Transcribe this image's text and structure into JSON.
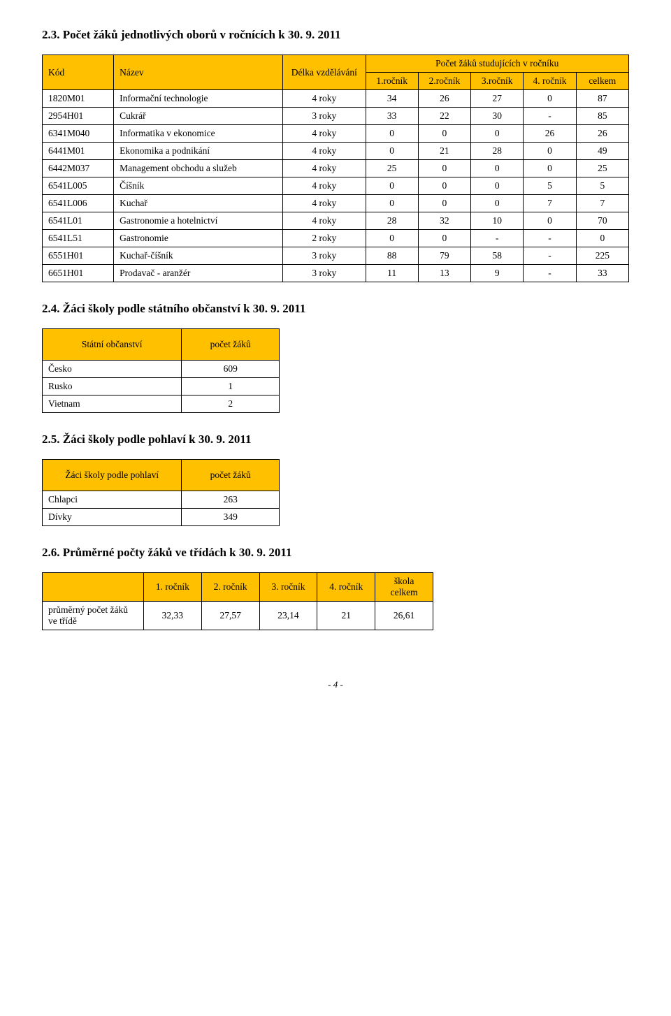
{
  "colors": {
    "accent": "#ffc000",
    "border": "#000000",
    "text": "#000000",
    "bg": "#ffffff"
  },
  "section23": {
    "title": "2.3. Počet žáků jednotlivých oborů v ročnících k 30. 9. 2011",
    "head": {
      "kod": "Kód",
      "nazev": "Název",
      "delka": "Délka vzdělávání",
      "group": "Počet žáků studujících v ročníku",
      "r1": "1.ročník",
      "r2": "2.ročník",
      "r3": "3.ročník",
      "r4": "4. ročník",
      "celkem": "celkem"
    },
    "rows": [
      {
        "kod": "1820M01",
        "nazev": "Informační technologie",
        "delka": "4 roky",
        "r1": "34",
        "r2": "26",
        "r3": "27",
        "r4": "0",
        "celkem": "87"
      },
      {
        "kod": "2954H01",
        "nazev": "Cukrář",
        "delka": "3 roky",
        "r1": "33",
        "r2": "22",
        "r3": "30",
        "r4": "-",
        "celkem": "85"
      },
      {
        "kod": "6341M040",
        "nazev": "Informatika v ekonomice",
        "delka": "4 roky",
        "r1": "0",
        "r2": "0",
        "r3": "0",
        "r4": "26",
        "celkem": "26"
      },
      {
        "kod": "6441M01",
        "nazev": "Ekonomika a podnikání",
        "delka": "4 roky",
        "r1": "0",
        "r2": "21",
        "r3": "28",
        "r4": "0",
        "celkem": "49"
      },
      {
        "kod": "6442M037",
        "nazev": "Management obchodu a služeb",
        "delka": "4 roky",
        "r1": "25",
        "r2": "0",
        "r3": "0",
        "r4": "0",
        "celkem": "25"
      },
      {
        "kod": "6541L005",
        "nazev": "Číšník",
        "delka": "4 roky",
        "r1": "0",
        "r2": "0",
        "r3": "0",
        "r4": "5",
        "celkem": "5"
      },
      {
        "kod": "6541L006",
        "nazev": "Kuchař",
        "delka": "4 roky",
        "r1": "0",
        "r2": "0",
        "r3": "0",
        "r4": "7",
        "celkem": "7"
      },
      {
        "kod": "6541L01",
        "nazev": "Gastronomie a hotelnictví",
        "delka": "4 roky",
        "r1": "28",
        "r2": "32",
        "r3": "10",
        "r4": "0",
        "celkem": "70"
      },
      {
        "kod": "6541L51",
        "nazev": "Gastronomie",
        "delka": "2 roky",
        "r1": "0",
        "r2": "0",
        "r3": "-",
        "r4": "-",
        "celkem": "0"
      },
      {
        "kod": "6551H01",
        "nazev": "Kuchař-číšník",
        "delka": "3 roky",
        "r1": "88",
        "r2": "79",
        "r3": "58",
        "r4": "-",
        "celkem": "225"
      },
      {
        "kod": "6651H01",
        "nazev": "Prodavač - aranžér",
        "delka": "3 roky",
        "r1": "11",
        "r2": "13",
        "r3": "9",
        "r4": "-",
        "celkem": "33"
      }
    ]
  },
  "section24": {
    "title": "2.4. Žáci školy podle státního občanství k 30. 9. 2011",
    "head": {
      "label": "Státní občanství",
      "count": "počet žáků"
    },
    "rows": [
      {
        "label": "Česko",
        "count": "609"
      },
      {
        "label": "Rusko",
        "count": "1"
      },
      {
        "label": "Vietnam",
        "count": "2"
      }
    ]
  },
  "section25": {
    "title": "2.5. Žáci školy podle pohlaví k 30. 9. 2011",
    "head": {
      "label": "Žáci školy podle pohlaví",
      "count": "počet žáků"
    },
    "rows": [
      {
        "label": "Chlapci",
        "count": "263"
      },
      {
        "label": "Dívky",
        "count": "349"
      }
    ]
  },
  "section26": {
    "title": "2.6. Průměrné počty žáků ve třídách k 30. 9. 2011",
    "head": {
      "r1": "1. ročník",
      "r2": "2. ročník",
      "r3": "3. ročník",
      "r4": "4. ročník",
      "celkem": "škola celkem"
    },
    "row": {
      "label": "průměrný počet žáků ve třídě",
      "r1": "32,33",
      "r2": "27,57",
      "r3": "23,14",
      "r4": "21",
      "celkem": "26,61"
    }
  },
  "footer": "- 4 -"
}
